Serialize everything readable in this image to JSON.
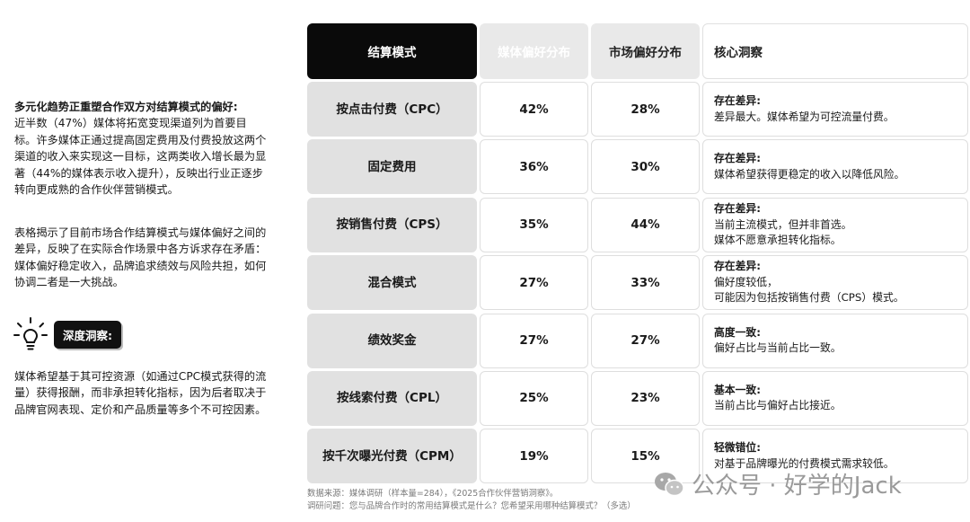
{
  "left": {
    "lead": "多元化趋势正重塑合作双方对结算模式的偏好:",
    "para1": "近半数（47%）媒体将拓宽变现渠道列为首要目标。许多媒体正通过提高固定费用及付费投放这两个渠道的收入来实现这一目标，这两类收入增长最为显著（44%的媒体表示收入提升），反映出行业正逐步转向更成熟的合作伙伴营销模式。",
    "para2": "表格揭示了目前市场合作结算模式与媒体偏好之间的差异，反映了在实际合作场景中各方诉求存在矛盾：媒体偏好稳定收入，品牌追求绩效与风险共担，如何协调二者是一大挑战。",
    "insight_label": "深度洞察:",
    "para3": "媒体希望基于其可控资源（如通过CPC模式获得的流量）获得报酬，而非承担转化指标，因为后者取决于品牌官网表现、定价和产品质量等多个不可控因素。"
  },
  "table": {
    "headers": [
      "结算模式",
      "媒体偏好分布",
      "市场偏好分布",
      "核心洞察"
    ],
    "rows": [
      {
        "mode": "按点击付费（CPC）",
        "media": "42%",
        "market": "28%",
        "title": "存在差异:",
        "lines": [
          "差异最大。媒体希望为可控流量付费。"
        ]
      },
      {
        "mode": "固定费用",
        "media": "36%",
        "market": "30%",
        "title": "存在差异:",
        "lines": [
          "媒体希望获得更稳定的收入以降低风险。"
        ]
      },
      {
        "mode": "按销售付费（CPS）",
        "media": "35%",
        "market": "44%",
        "title": "存在差异:",
        "lines": [
          "当前主流模式，但并非首选。",
          "媒体不愿意承担转化指标。"
        ]
      },
      {
        "mode": "混合模式",
        "media": "27%",
        "market": "33%",
        "title": "存在差异:",
        "lines": [
          "偏好度较低，",
          "可能因为包括按销售付费（CPS）模式。"
        ]
      },
      {
        "mode": "绩效奖金",
        "media": "27%",
        "market": "27%",
        "title": "高度一致:",
        "lines": [
          "偏好占比与当前占比一致。"
        ]
      },
      {
        "mode": "按线索付费（CPL）",
        "media": "25%",
        "market": "23%",
        "title": "基本一致:",
        "lines": [
          "当前占比与偏好占比接近。"
        ]
      },
      {
        "mode": "按千次曝光付费（CPM）",
        "media": "19%",
        "market": "15%",
        "title": "轻微错位:",
        "lines": [
          "对基于品牌曝光的付费模式需求较低。"
        ]
      }
    ]
  },
  "footer": {
    "source": "数据来源：媒体调研（样本量=284），《2025合作伙伴营销洞察》。",
    "question": "调研问题：您与品牌合作时的常用结算模式是什么？您希望采用哪种结算模式？（多选）"
  },
  "watermark": "公众号 · 好学的Jack"
}
